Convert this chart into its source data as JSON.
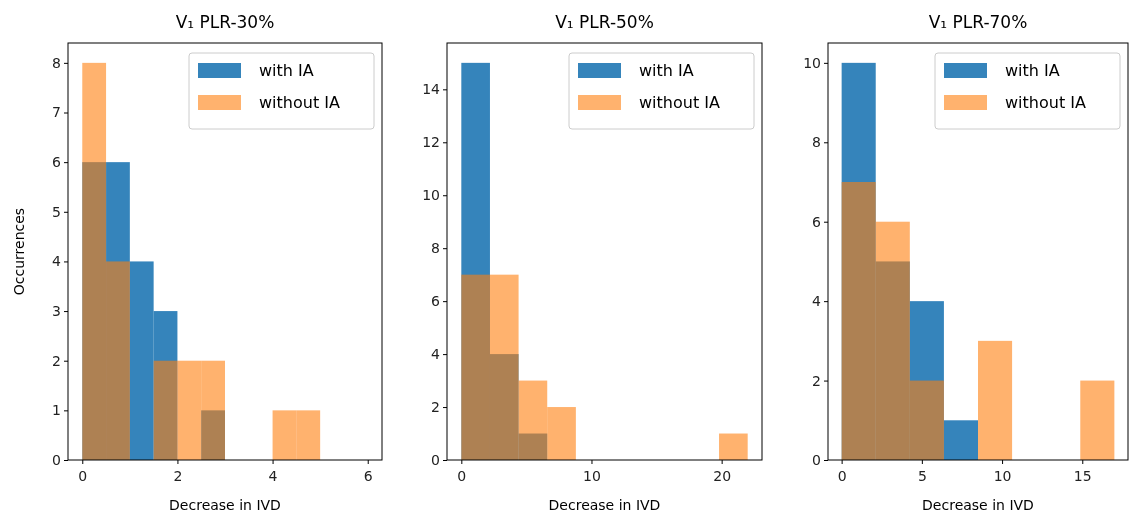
{
  "chart_data": [
    {
      "type": "histogram",
      "title": "V₁ PLR-30%",
      "xlabel": "Decrease in IVD",
      "ylabel": "Occurrences",
      "xlim": [
        -0.3,
        6.3
      ],
      "xticks": [
        0,
        2,
        4,
        6
      ],
      "ylim": [
        0,
        8.4
      ],
      "yticks": [
        0,
        1,
        2,
        3,
        4,
        5,
        6,
        7,
        8
      ],
      "legend": "top right",
      "bins": [
        0,
        0.5,
        1,
        1.5,
        2,
        2.5,
        3,
        3.5,
        4,
        4.5,
        5
      ],
      "series": [
        {
          "name": "with IA",
          "color": "#1f77b4",
          "values": [
            6,
            6,
            4,
            3,
            0,
            1,
            0,
            0,
            0,
            0
          ]
        },
        {
          "name": "without IA",
          "color": "#ff7f0e",
          "values": [
            8,
            4,
            0,
            2,
            2,
            2,
            0,
            0,
            1,
            1
          ]
        }
      ]
    },
    {
      "type": "histogram",
      "title": "V₁ PLR-50%",
      "xlabel": "Decrease in IVD",
      "xlim": [
        -1.1,
        23.1
      ],
      "xticks": [
        0,
        10,
        20
      ],
      "ylim": [
        0,
        15.75
      ],
      "yticks": [
        0,
        2,
        4,
        6,
        8,
        10,
        12,
        14
      ],
      "legend": "top right",
      "bins": [
        0,
        2.2,
        4.4,
        6.6,
        8.8,
        11,
        13.2,
        15.4,
        17.6,
        19.8,
        22
      ],
      "series": [
        {
          "name": "with IA",
          "color": "#1f77b4",
          "values": [
            15,
            4,
            1,
            0,
            0,
            0,
            0,
            0,
            0,
            0
          ]
        },
        {
          "name": "without IA",
          "color": "#ff7f0e",
          "values": [
            7,
            7,
            3,
            2,
            0,
            0,
            0,
            0,
            0,
            1
          ]
        }
      ]
    },
    {
      "type": "histogram",
      "title": "V₁ PLR-70%",
      "xlabel": "Decrease in IVD",
      "xlim": [
        -0.85,
        17.85
      ],
      "xticks": [
        0,
        5,
        10,
        15
      ],
      "ylim": [
        0,
        10.5
      ],
      "yticks": [
        0,
        2,
        4,
        6,
        8,
        10
      ],
      "legend": "top right",
      "bins": [
        0,
        2.125,
        4.25,
        6.375,
        8.5,
        10.625,
        12.75,
        14.875,
        17
      ],
      "series": [
        {
          "name": "with IA",
          "color": "#1f77b4",
          "values": [
            10,
            5,
            4,
            1,
            0,
            0,
            0,
            0
          ]
        },
        {
          "name": "without IA",
          "color": "#ff7f0e",
          "values": [
            7,
            6,
            2,
            0,
            3,
            0,
            0,
            2
          ]
        }
      ]
    }
  ]
}
